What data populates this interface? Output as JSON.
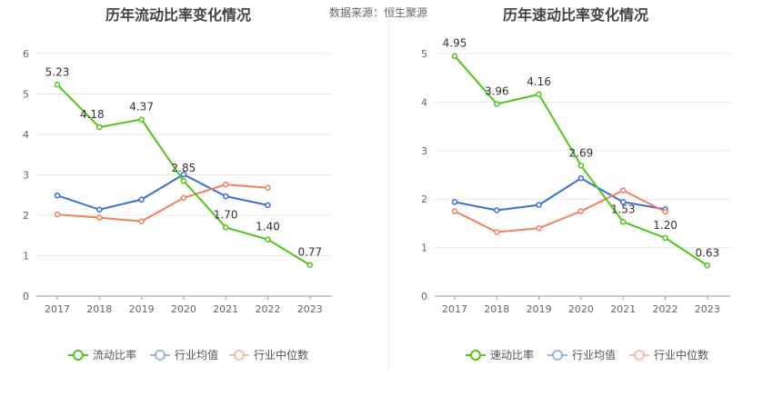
{
  "source_label": "数据来源：恒生聚源",
  "chart_data": [
    {
      "type": "line",
      "title": "历年流动比率变化情况",
      "x": [
        "2017",
        "2018",
        "2019",
        "2020",
        "2021",
        "2022",
        "2023"
      ],
      "ylim": [
        0,
        6
      ],
      "yticks": [
        "0",
        "1",
        "2",
        "3",
        "4",
        "5",
        "6"
      ],
      "grid": true,
      "legend_position": "bottom",
      "series": [
        {
          "name": "流动比率",
          "color": "#52c41a",
          "values": [
            5.23,
            4.18,
            4.37,
            2.85,
            1.7,
            1.4,
            0.77
          ],
          "labels": [
            "5.23",
            "4.18",
            "4.37",
            "2.85",
            "1.70",
            "1.40",
            "0.77"
          ]
        },
        {
          "name": "行业均值",
          "color": "#3a6fd8",
          "values": [
            2.49,
            2.14,
            2.39,
            3.01,
            2.47,
            2.25,
            null
          ]
        },
        {
          "name": "行业中位数",
          "color": "#f4805c",
          "values": [
            2.02,
            1.94,
            1.85,
            2.43,
            2.76,
            2.68,
            null
          ]
        }
      ]
    },
    {
      "type": "line",
      "title": "历年速动比率变化情况",
      "x": [
        "2017",
        "2018",
        "2019",
        "2020",
        "2021",
        "2022",
        "2023"
      ],
      "ylim": [
        0,
        5
      ],
      "yticks": [
        "0",
        "1",
        "2",
        "3",
        "4",
        "5"
      ],
      "grid": true,
      "legend_position": "bottom",
      "series": [
        {
          "name": "速动比率",
          "color": "#52c41a",
          "values": [
            4.95,
            3.96,
            4.16,
            2.69,
            1.53,
            1.2,
            0.63
          ],
          "labels": [
            "4.95",
            "3.96",
            "4.16",
            "2.69",
            "1.53",
            "1.20",
            "0.63"
          ]
        },
        {
          "name": "行业均值",
          "color": "#3a6fd8",
          "values": [
            1.94,
            1.77,
            1.88,
            2.43,
            1.94,
            1.79,
            null
          ]
        },
        {
          "name": "行业中位数",
          "color": "#f4805c",
          "values": [
            1.75,
            1.32,
            1.4,
            1.75,
            2.18,
            1.74,
            null
          ]
        }
      ]
    }
  ]
}
